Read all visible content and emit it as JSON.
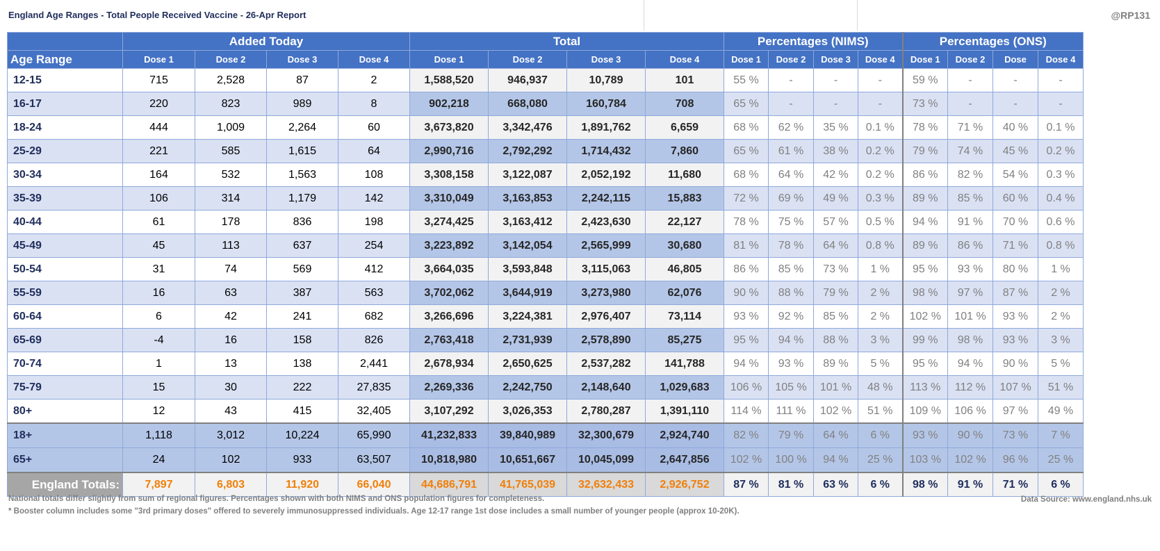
{
  "title": "England Age Ranges - Total People Received Vaccine - 26-Apr Report",
  "handle": "@RP131",
  "groups": [
    "Added Today",
    "Total",
    "Percentages (NIMS)",
    "Percentages (ONS)"
  ],
  "age_header": "Age Range",
  "sub_headers": [
    "Dose 1",
    "Dose 2",
    "Dose 3",
    "Dose 4",
    "Dose 1",
    "Dose 2",
    "Dose 3",
    "Dose 4",
    "Dose 1",
    "Dose 2",
    "Dose 3",
    "Dose 4",
    "Dose 1",
    "Dose 2",
    "Dose",
    "Dose 4"
  ],
  "rows": [
    [
      "12-15",
      "715",
      "2,528",
      "87",
      "2",
      "1,588,520",
      "946,937",
      "10,789",
      "101",
      "55 %",
      "-",
      "-",
      "-",
      "59 %",
      "-",
      "-",
      "-"
    ],
    [
      "16-17",
      "220",
      "823",
      "989",
      "8",
      "902,218",
      "668,080",
      "160,784",
      "708",
      "65 %",
      "-",
      "-",
      "-",
      "73 %",
      "-",
      "-",
      "-"
    ],
    [
      "18-24",
      "444",
      "1,009",
      "2,264",
      "60",
      "3,673,820",
      "3,342,476",
      "1,891,762",
      "6,659",
      "68 %",
      "62 %",
      "35 %",
      "0.1 %",
      "78 %",
      "71 %",
      "40 %",
      "0.1 %"
    ],
    [
      "25-29",
      "221",
      "585",
      "1,615",
      "64",
      "2,990,716",
      "2,792,292",
      "1,714,432",
      "7,860",
      "65 %",
      "61 %",
      "38 %",
      "0.2 %",
      "79 %",
      "74 %",
      "45 %",
      "0.2 %"
    ],
    [
      "30-34",
      "164",
      "532",
      "1,563",
      "108",
      "3,308,158",
      "3,122,087",
      "2,052,192",
      "11,680",
      "68 %",
      "64 %",
      "42 %",
      "0.2 %",
      "86 %",
      "82 %",
      "54 %",
      "0.3 %"
    ],
    [
      "35-39",
      "106",
      "314",
      "1,179",
      "142",
      "3,310,049",
      "3,163,853",
      "2,242,115",
      "15,883",
      "72 %",
      "69 %",
      "49 %",
      "0.3 %",
      "89 %",
      "85 %",
      "60 %",
      "0.4 %"
    ],
    [
      "40-44",
      "61",
      "178",
      "836",
      "198",
      "3,274,425",
      "3,163,412",
      "2,423,630",
      "22,127",
      "78 %",
      "75 %",
      "57 %",
      "0.5 %",
      "94 %",
      "91 %",
      "70 %",
      "0.6 %"
    ],
    [
      "45-49",
      "45",
      "113",
      "637",
      "254",
      "3,223,892",
      "3,142,054",
      "2,565,999",
      "30,680",
      "81 %",
      "78 %",
      "64 %",
      "0.8 %",
      "89 %",
      "86 %",
      "71 %",
      "0.8 %"
    ],
    [
      "50-54",
      "31",
      "74",
      "569",
      "412",
      "3,664,035",
      "3,593,848",
      "3,115,063",
      "46,805",
      "86 %",
      "85 %",
      "73 %",
      "1 %",
      "95 %",
      "93 %",
      "80 %",
      "1 %"
    ],
    [
      "55-59",
      "16",
      "63",
      "387",
      "563",
      "3,702,062",
      "3,644,919",
      "3,273,980",
      "62,076",
      "90 %",
      "88 %",
      "79 %",
      "2 %",
      "98 %",
      "97 %",
      "87 %",
      "2 %"
    ],
    [
      "60-64",
      "6",
      "42",
      "241",
      "682",
      "3,266,696",
      "3,224,381",
      "2,976,407",
      "73,114",
      "93 %",
      "92 %",
      "85 %",
      "2 %",
      "102 %",
      "101 %",
      "93 %",
      "2 %"
    ],
    [
      "65-69",
      "-4",
      "16",
      "158",
      "826",
      "2,763,418",
      "2,731,939",
      "2,578,890",
      "85,275",
      "95 %",
      "94 %",
      "88 %",
      "3 %",
      "99 %",
      "98 %",
      "93 %",
      "3 %"
    ],
    [
      "70-74",
      "1",
      "13",
      "138",
      "2,441",
      "2,678,934",
      "2,650,625",
      "2,537,282",
      "141,788",
      "94 %",
      "93 %",
      "89 %",
      "5 %",
      "95 %",
      "94 %",
      "90 %",
      "5 %"
    ],
    [
      "75-79",
      "15",
      "30",
      "222",
      "27,835",
      "2,269,336",
      "2,242,750",
      "2,148,640",
      "1,029,683",
      "106 %",
      "105 %",
      "101 %",
      "48 %",
      "113 %",
      "112 %",
      "107 %",
      "51 %"
    ],
    [
      "80+",
      "12",
      "43",
      "415",
      "32,405",
      "3,107,292",
      "3,026,353",
      "2,780,287",
      "1,391,110",
      "114 %",
      "111 %",
      "102 %",
      "51 %",
      "109 %",
      "106 %",
      "97 %",
      "49 %"
    ]
  ],
  "summary_rows": [
    [
      "18+",
      "1,118",
      "3,012",
      "10,224",
      "65,990",
      "41,232,833",
      "39,840,989",
      "32,300,679",
      "2,924,740",
      "82 %",
      "79 %",
      "64 %",
      "6 %",
      "93 %",
      "90 %",
      "73 %",
      "7 %"
    ],
    [
      "65+",
      "24",
      "102",
      "933",
      "63,507",
      "10,818,980",
      "10,651,667",
      "10,045,099",
      "2,647,856",
      "102 %",
      "100 %",
      "94 %",
      "25 %",
      "103 %",
      "102 %",
      "96 %",
      "25 %"
    ]
  ],
  "totals": [
    "England Totals:",
    "7,897",
    "6,803",
    "11,920",
    "66,040",
    "44,686,791",
    "41,765,039",
    "32,632,433",
    "2,926,752",
    "87 %",
    "81 %",
    "63 %",
    "6 %",
    "98 %",
    "91 %",
    "71 %",
    "6 %"
  ],
  "notes": [
    "National totals differ slightly from sum of regional figures. Percentages shown with both NIMS and ONS population figures for completeness.",
    "* Booster column includes some \"3rd primary doses\" offered to severely immunosuppressed individuals. Age 12-17 range 1st dose includes a small number of younger people (approx 10-20K)."
  ],
  "source": "Data Source: www.england.nhs.uk",
  "colors": {
    "header": "#4472c4",
    "band": "#dae1f3",
    "total_band": "#b4c6e7",
    "totals_text": "#f07f09",
    "title": "#1f2d5c"
  }
}
